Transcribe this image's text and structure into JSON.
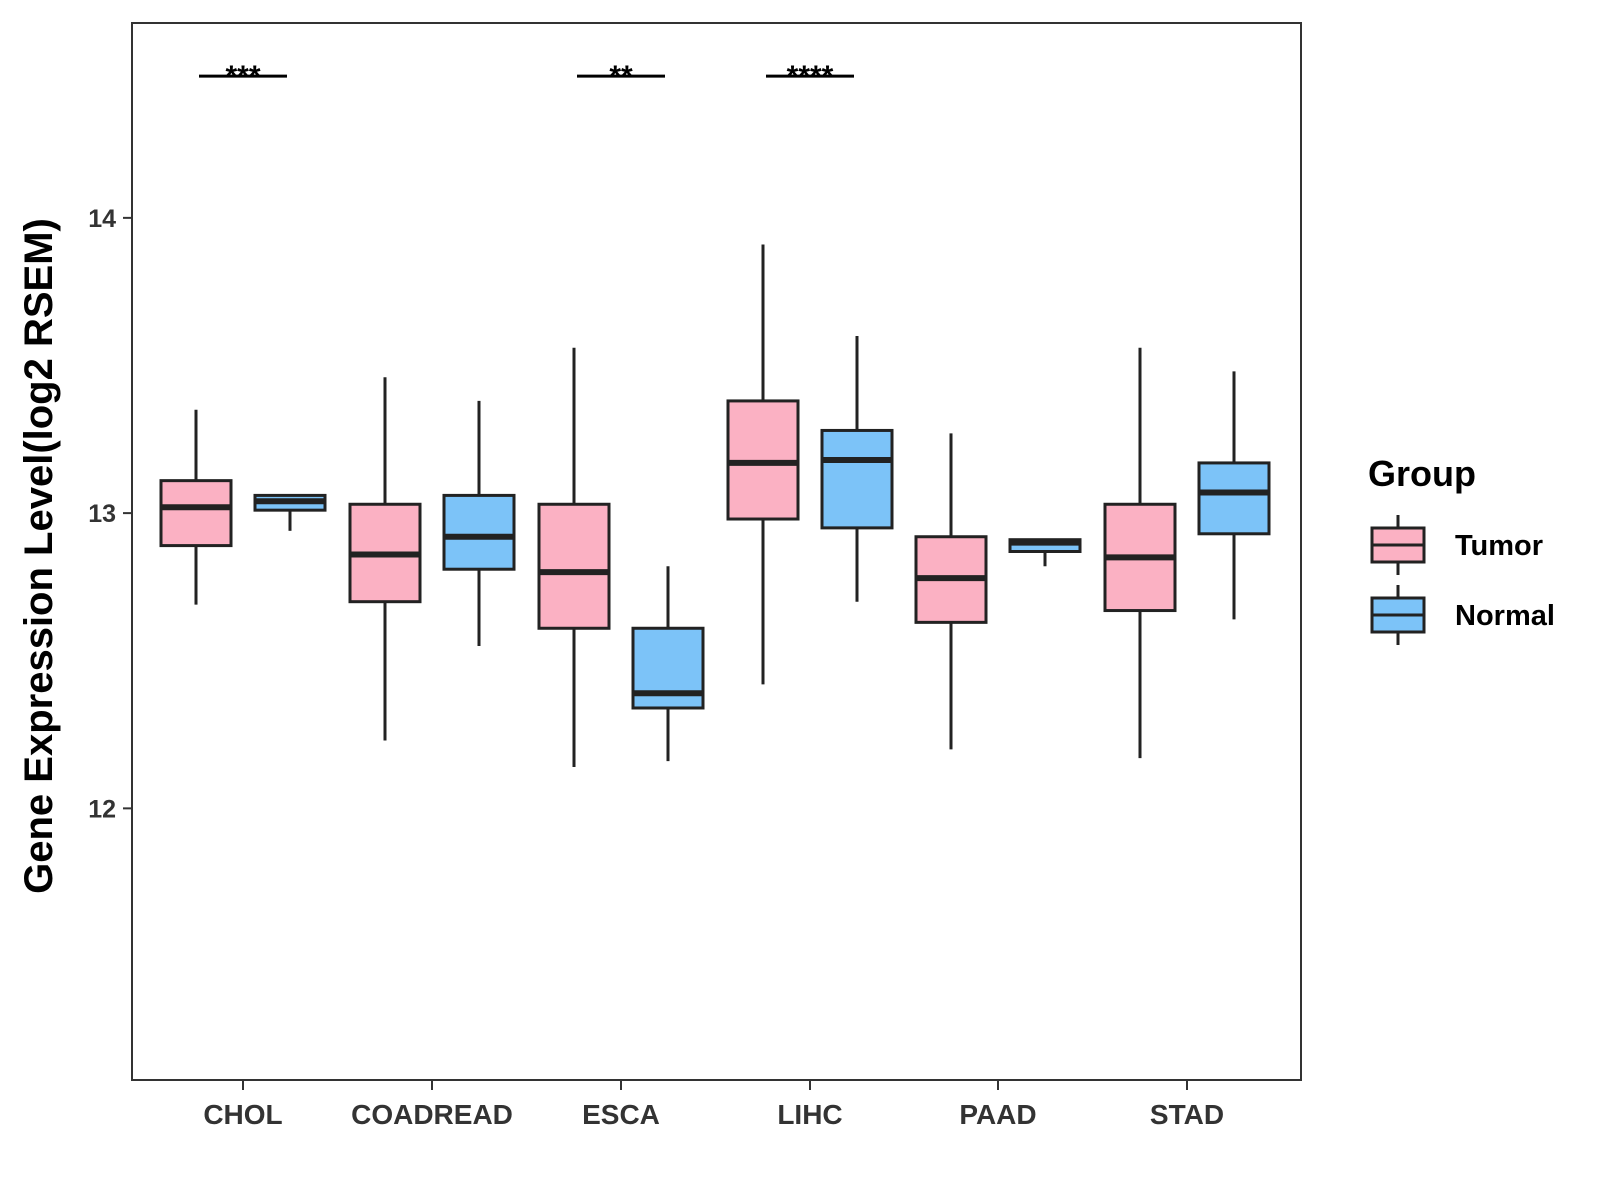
{
  "chart_data": {
    "type": "boxplot",
    "title": "",
    "xlabel": "",
    "ylabel": "Gene Expression Level(log2 RSEM)",
    "ylim": [
      11.08,
      14.66
    ],
    "yticks": [
      12,
      13,
      14
    ],
    "grid": false,
    "categories": [
      "CHOL",
      "COADREAD",
      "ESCA",
      "LIHC",
      "PAAD",
      "STAD"
    ],
    "series": [
      {
        "name": "Tumor",
        "color": "#FBB1C3",
        "boxes": [
          {
            "category": "CHOL",
            "whisker_low": 12.69,
            "q1": 12.89,
            "median": 13.02,
            "q3": 13.11,
            "whisker_high": 13.35
          },
          {
            "category": "COADREAD",
            "whisker_low": 12.23,
            "q1": 12.7,
            "median": 12.86,
            "q3": 13.03,
            "whisker_high": 13.46
          },
          {
            "category": "ESCA",
            "whisker_low": 12.14,
            "q1": 12.61,
            "median": 12.8,
            "q3": 13.03,
            "whisker_high": 13.56
          },
          {
            "category": "LIHC",
            "whisker_low": 12.42,
            "q1": 12.98,
            "median": 13.17,
            "q3": 13.38,
            "whisker_high": 13.91
          },
          {
            "category": "PAAD",
            "whisker_low": 12.2,
            "q1": 12.63,
            "median": 12.78,
            "q3": 12.92,
            "whisker_high": 13.27
          },
          {
            "category": "STAD",
            "whisker_low": 12.17,
            "q1": 12.67,
            "median": 12.85,
            "q3": 13.03,
            "whisker_high": 13.56
          }
        ]
      },
      {
        "name": "Normal",
        "color": "#7CC3F8",
        "boxes": [
          {
            "category": "CHOL",
            "whisker_low": 12.94,
            "q1": 13.01,
            "median": 13.04,
            "q3": 13.06,
            "whisker_high": 13.06
          },
          {
            "category": "COADREAD",
            "whisker_low": 12.55,
            "q1": 12.81,
            "median": 12.92,
            "q3": 13.06,
            "whisker_high": 13.38
          },
          {
            "category": "ESCA",
            "whisker_low": 12.16,
            "q1": 12.34,
            "median": 12.39,
            "q3": 12.61,
            "whisker_high": 12.82
          },
          {
            "category": "LIHC",
            "whisker_low": 12.7,
            "q1": 12.95,
            "median": 13.18,
            "q3": 13.28,
            "whisker_high": 13.6
          },
          {
            "category": "PAAD",
            "whisker_low": 12.82,
            "q1": 12.87,
            "median": 12.9,
            "q3": 12.91,
            "whisker_high": 12.91
          },
          {
            "category": "STAD",
            "whisker_low": 12.64,
            "q1": 12.93,
            "median": 13.07,
            "q3": 13.17,
            "whisker_high": 13.48
          }
        ]
      }
    ],
    "significance": [
      {
        "category": "CHOL",
        "label": "***"
      },
      {
        "category": "ESCA",
        "label": "**"
      },
      {
        "category": "LIHC",
        "label": "****"
      }
    ],
    "significance_level": 14.48,
    "legend": {
      "title": "Group",
      "position": "right",
      "entries": [
        "Tumor",
        "Normal"
      ]
    }
  }
}
